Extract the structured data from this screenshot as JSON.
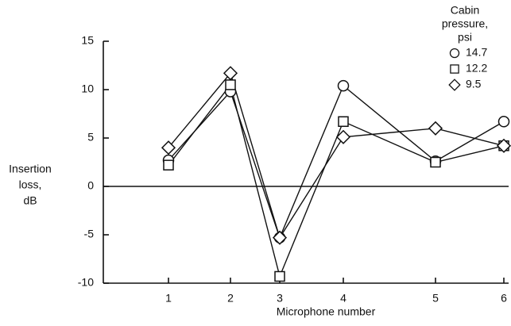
{
  "chart_data": {
    "type": "line",
    "x_label": "Microphone number",
    "y_label": [
      "Insertion",
      "loss,",
      "dB"
    ],
    "legend_title": [
      "Cabin",
      "pressure,",
      "psi"
    ],
    "categories": [
      "1",
      "2",
      "3",
      "4",
      "5",
      "6"
    ],
    "series": [
      {
        "name": "14.7",
        "marker": "circle",
        "color": "#111111",
        "values": [
          2.7,
          9.8,
          -5.3,
          10.4,
          2.6,
          6.7
        ]
      },
      {
        "name": "12.2",
        "marker": "square",
        "color": "#111111",
        "values": [
          2.2,
          10.5,
          -9.3,
          6.7,
          2.5,
          4.2
        ]
      },
      {
        "name": "9.5",
        "marker": "diamond",
        "color": "#111111",
        "values": [
          4.0,
          11.7,
          -5.3,
          5.1,
          6.0,
          4.2
        ]
      }
    ],
    "ylim": [
      -10,
      15
    ],
    "yticks": [
      -10,
      -5,
      0,
      5,
      10,
      15
    ],
    "hline": 0,
    "legend": "top-right"
  }
}
